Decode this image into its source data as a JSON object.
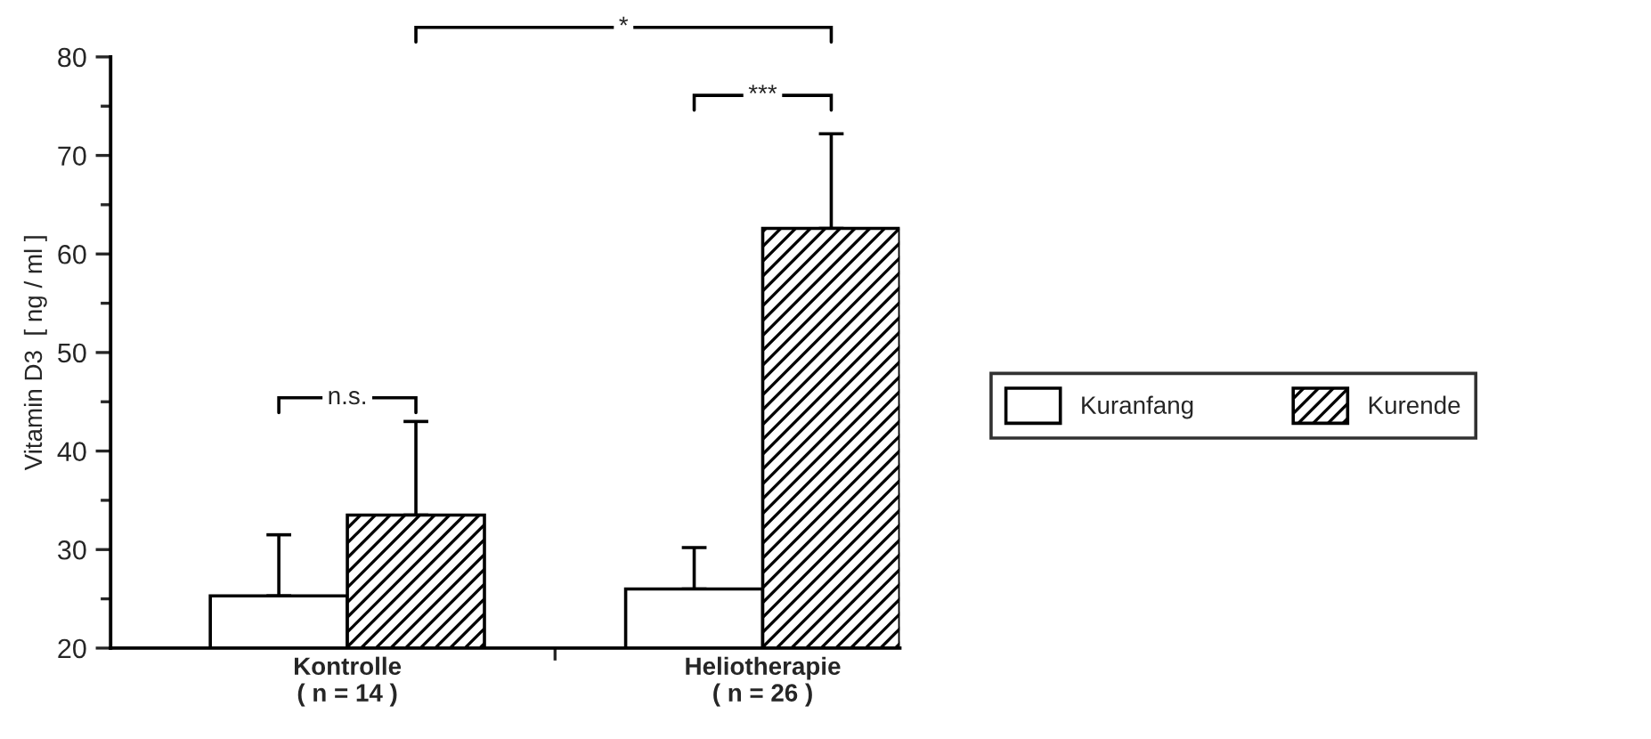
{
  "chart_data": {
    "type": "bar",
    "ylabel": "Vitamin D3  [ ng / ml ]",
    "categories": [
      "Kontrolle\n( n = 14 )",
      "Heliotherapie\n( n = 26 )"
    ],
    "series": [
      {
        "name": "Kuranfang",
        "color": "#ffffff",
        "values": [
          25.3,
          26.0
        ],
        "errors": [
          [
            25.3,
            31.5
          ],
          [
            26.0,
            30.2
          ]
        ]
      },
      {
        "name": "Kurende",
        "color": "#000000",
        "values": [
          33.5,
          62.6
        ],
        "errors": [
          [
            33.5,
            43.0
          ],
          [
            62.6,
            72.2
          ]
        ]
      }
    ],
    "ylim": [
      20,
      80
    ],
    "yticks": [
      20,
      30,
      40,
      50,
      60,
      70,
      80
    ],
    "annotations": [
      "n.s.",
      "***",
      "*"
    ],
    "legend": "right",
    "grid": false
  }
}
